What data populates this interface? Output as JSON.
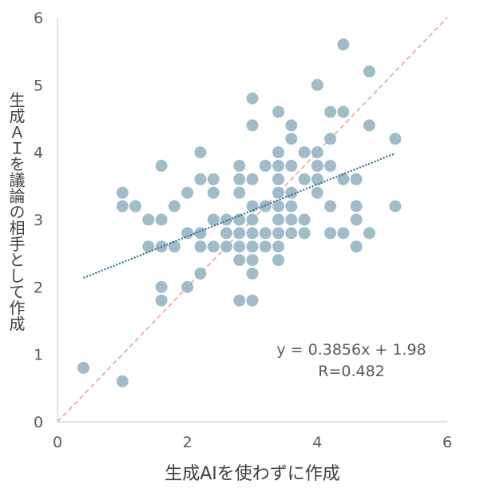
{
  "chart_data": {
    "type": "scatter",
    "xlabel": "生成AIを使わずに作成",
    "ylabel": "生成ＡＩを議論の相手として作成",
    "xlim": [
      0,
      6
    ],
    "ylim": [
      0,
      6
    ],
    "x_ticks": [
      "0",
      "2",
      "4",
      "6"
    ],
    "y_ticks": [
      "0",
      "1",
      "2",
      "3",
      "4",
      "5",
      "6"
    ],
    "grid": false,
    "annotation": {
      "equation": "y = 0.3856x + 1.98",
      "r": "R=0.482"
    },
    "trendline": {
      "slope": 0.3856,
      "intercept": 1.98,
      "x_range": [
        0.4,
        5.2
      ]
    },
    "reference_line": {
      "points": [
        [
          0,
          0
        ],
        [
          6,
          6
        ]
      ]
    },
    "colors": {
      "point": "#8fb0c0",
      "point_dark": "#3d7a8e",
      "trendline": "#2f6f88",
      "reference_line": "#f2a7a7",
      "axis": "#d9d9d9",
      "text": "#404040"
    },
    "points": [
      {
        "x": 0.4,
        "y": 0.8
      },
      {
        "x": 1.0,
        "y": 0.6
      },
      {
        "x": 1.0,
        "y": 3.4
      },
      {
        "x": 1.0,
        "y": 3.2
      },
      {
        "x": 1.2,
        "y": 3.2
      },
      {
        "x": 1.4,
        "y": 3.0
      },
      {
        "x": 1.4,
        "y": 2.6
      },
      {
        "x": 1.6,
        "y": 3.8
      },
      {
        "x": 1.6,
        "y": 3.0
      },
      {
        "x": 1.6,
        "y": 2.6
      },
      {
        "x": 1.6,
        "y": 2.0
      },
      {
        "x": 1.6,
        "y": 1.8
      },
      {
        "x": 1.8,
        "y": 3.2
      },
      {
        "x": 1.8,
        "y": 2.6
      },
      {
        "x": 2.0,
        "y": 3.4
      },
      {
        "x": 2.0,
        "y": 2.8
      },
      {
        "x": 2.0,
        "y": 2.0
      },
      {
        "x": 2.2,
        "y": 4.0
      },
      {
        "x": 2.2,
        "y": 3.6
      },
      {
        "x": 2.2,
        "y": 2.8
      },
      {
        "x": 2.2,
        "y": 2.6
      },
      {
        "x": 2.2,
        "y": 2.2
      },
      {
        "x": 2.4,
        "y": 3.6
      },
      {
        "x": 2.4,
        "y": 3.4
      },
      {
        "x": 2.4,
        "y": 3.0
      },
      {
        "x": 2.4,
        "y": 2.6
      },
      {
        "x": 2.6,
        "y": 3.0
      },
      {
        "x": 2.6,
        "y": 2.8
      },
      {
        "x": 2.6,
        "y": 2.6
      },
      {
        "x": 2.8,
        "y": 3.8
      },
      {
        "x": 2.8,
        "y": 3.6
      },
      {
        "x": 2.8,
        "y": 3.4
      },
      {
        "x": 2.8,
        "y": 3.0
      },
      {
        "x": 2.8,
        "y": 2.8
      },
      {
        "x": 2.8,
        "y": 2.6
      },
      {
        "x": 2.8,
        "y": 2.4
      },
      {
        "x": 2.8,
        "y": 1.8
      },
      {
        "x": 3.0,
        "y": 4.8
      },
      {
        "x": 3.0,
        "y": 4.4
      },
      {
        "x": 3.0,
        "y": 3.6
      },
      {
        "x": 3.0,
        "y": 3.2
      },
      {
        "x": 3.0,
        "y": 3.0
      },
      {
        "x": 3.0,
        "y": 2.8
      },
      {
        "x": 3.0,
        "y": 2.6
      },
      {
        "x": 3.0,
        "y": 2.4
      },
      {
        "x": 3.0,
        "y": 2.2
      },
      {
        "x": 3.0,
        "y": 1.8
      },
      {
        "x": 3.2,
        "y": 3.8
      },
      {
        "x": 3.2,
        "y": 3.2
      },
      {
        "x": 3.2,
        "y": 2.8
      },
      {
        "x": 3.2,
        "y": 2.6
      },
      {
        "x": 3.4,
        "y": 4.6
      },
      {
        "x": 3.4,
        "y": 4.0
      },
      {
        "x": 3.4,
        "y": 3.8
      },
      {
        "x": 3.4,
        "y": 3.6
      },
      {
        "x": 3.4,
        "y": 3.4
      },
      {
        "x": 3.4,
        "y": 3.2
      },
      {
        "x": 3.4,
        "y": 3.0
      },
      {
        "x": 3.4,
        "y": 2.8
      },
      {
        "x": 3.4,
        "y": 2.6
      },
      {
        "x": 3.4,
        "y": 2.4
      },
      {
        "x": 3.6,
        "y": 4.4
      },
      {
        "x": 3.6,
        "y": 4.2
      },
      {
        "x": 3.6,
        "y": 3.8
      },
      {
        "x": 3.6,
        "y": 3.4
      },
      {
        "x": 3.6,
        "y": 3.2
      },
      {
        "x": 3.6,
        "y": 3.0
      },
      {
        "x": 3.6,
        "y": 2.8
      },
      {
        "x": 3.8,
        "y": 4.0
      },
      {
        "x": 3.8,
        "y": 3.6
      },
      {
        "x": 3.8,
        "y": 3.0
      },
      {
        "x": 3.8,
        "y": 2.8
      },
      {
        "x": 4.0,
        "y": 5.0
      },
      {
        "x": 4.0,
        "y": 4.0
      },
      {
        "x": 4.0,
        "y": 3.8
      },
      {
        "x": 4.0,
        "y": 3.6
      },
      {
        "x": 4.0,
        "y": 3.4
      },
      {
        "x": 4.2,
        "y": 4.6
      },
      {
        "x": 4.2,
        "y": 4.2
      },
      {
        "x": 4.2,
        "y": 3.8
      },
      {
        "x": 4.2,
        "y": 3.2
      },
      {
        "x": 4.2,
        "y": 2.8
      },
      {
        "x": 4.4,
        "y": 5.6
      },
      {
        "x": 4.4,
        "y": 4.6
      },
      {
        "x": 4.4,
        "y": 3.6
      },
      {
        "x": 4.4,
        "y": 2.8
      },
      {
        "x": 4.6,
        "y": 3.6
      },
      {
        "x": 4.6,
        "y": 3.2
      },
      {
        "x": 4.6,
        "y": 3.0
      },
      {
        "x": 4.6,
        "y": 2.6
      },
      {
        "x": 4.8,
        "y": 5.2
      },
      {
        "x": 4.8,
        "y": 4.4
      },
      {
        "x": 4.8,
        "y": 2.8
      },
      {
        "x": 5.2,
        "y": 4.2
      },
      {
        "x": 5.2,
        "y": 3.2
      }
    ]
  }
}
